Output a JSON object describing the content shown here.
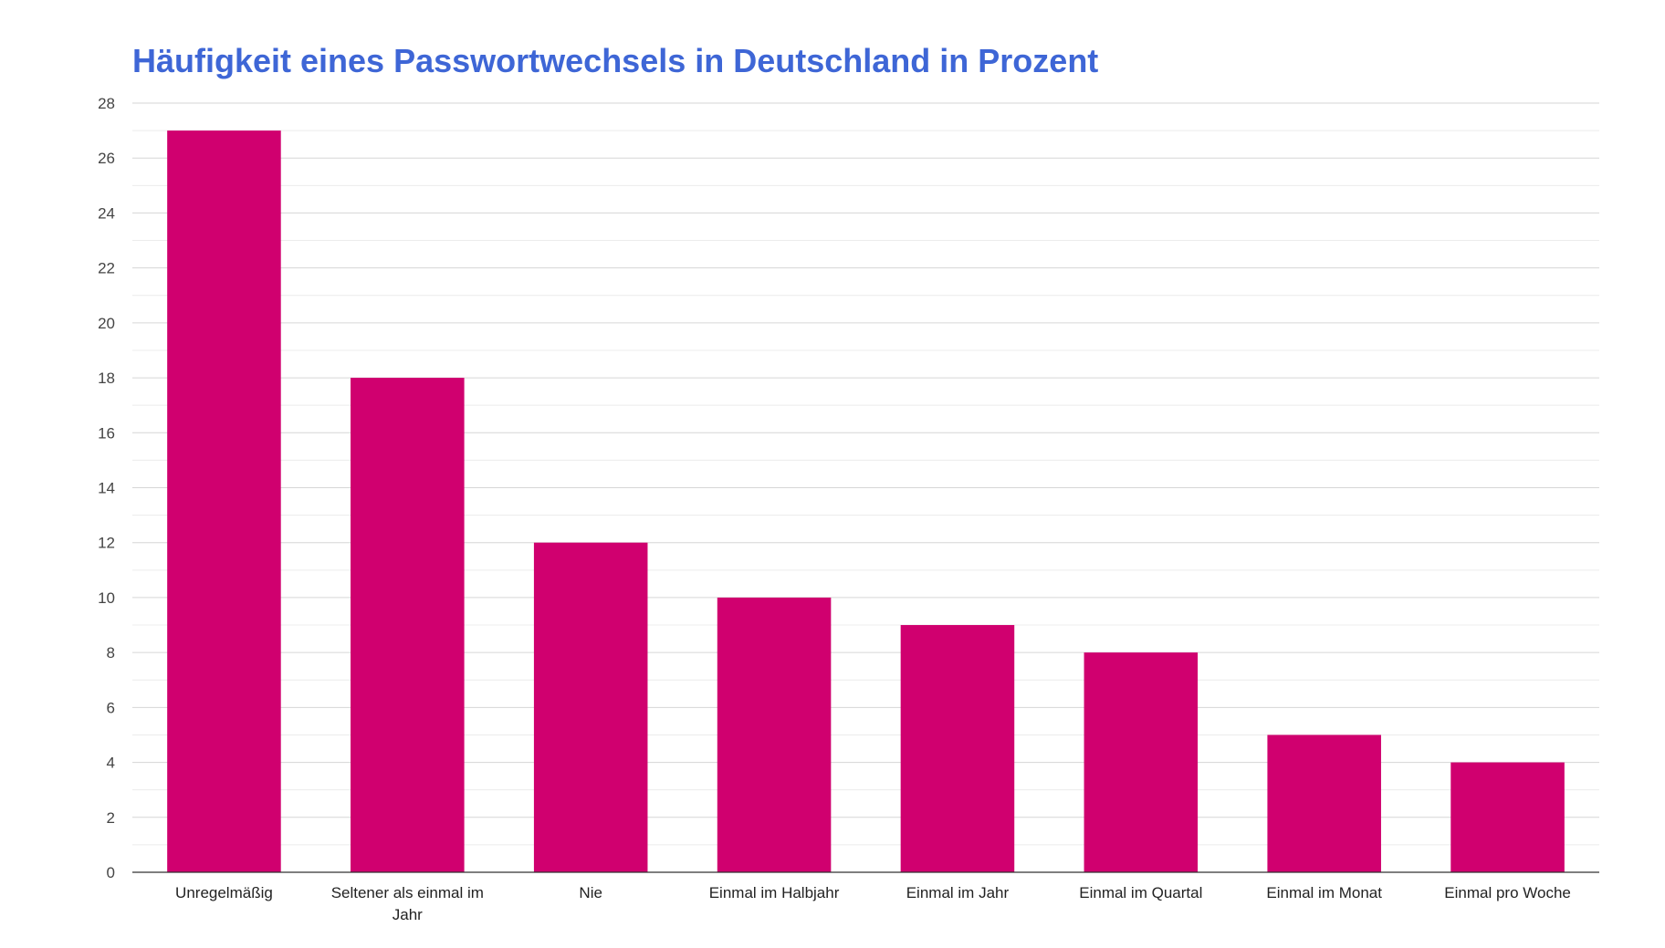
{
  "chart_data": {
    "type": "bar",
    "title": "Häufigkeit eines Passwortwechsels in Deutschland in Prozent",
    "xlabel": "",
    "ylabel": "",
    "categories": [
      "Unregelmäßig",
      "Seltener als einmal im Jahr",
      "Nie",
      "Einmal im Halbjahr",
      "Einmal im Jahr",
      "Einmal im Quartal",
      "Einmal im Monat",
      "Einmal pro Woche"
    ],
    "category_lines": [
      [
        "Unregelmäßig"
      ],
      [
        "Seltener als einmal im",
        "Jahr"
      ],
      [
        "Nie"
      ],
      [
        "Einmal im Halbjahr"
      ],
      [
        "Einmal im Jahr"
      ],
      [
        "Einmal im Quartal"
      ],
      [
        "Einmal im Monat"
      ],
      [
        "Einmal pro Woche"
      ]
    ],
    "values": [
      27,
      18,
      12,
      10,
      9,
      8,
      5,
      4
    ],
    "ylim": [
      0,
      28
    ],
    "yticks": [
      "0",
      "2",
      "4",
      "6",
      "8",
      "10",
      "12",
      "14",
      "16",
      "18",
      "20",
      "22",
      "24",
      "26",
      "28"
    ],
    "grid": true,
    "minor_grid": true,
    "legend": "none",
    "colors": {
      "bar": "#d0006f",
      "title": "#3e66d6",
      "grid": "#d6d6d6",
      "minor_grid": "#ececec",
      "axis": "#333333"
    }
  }
}
